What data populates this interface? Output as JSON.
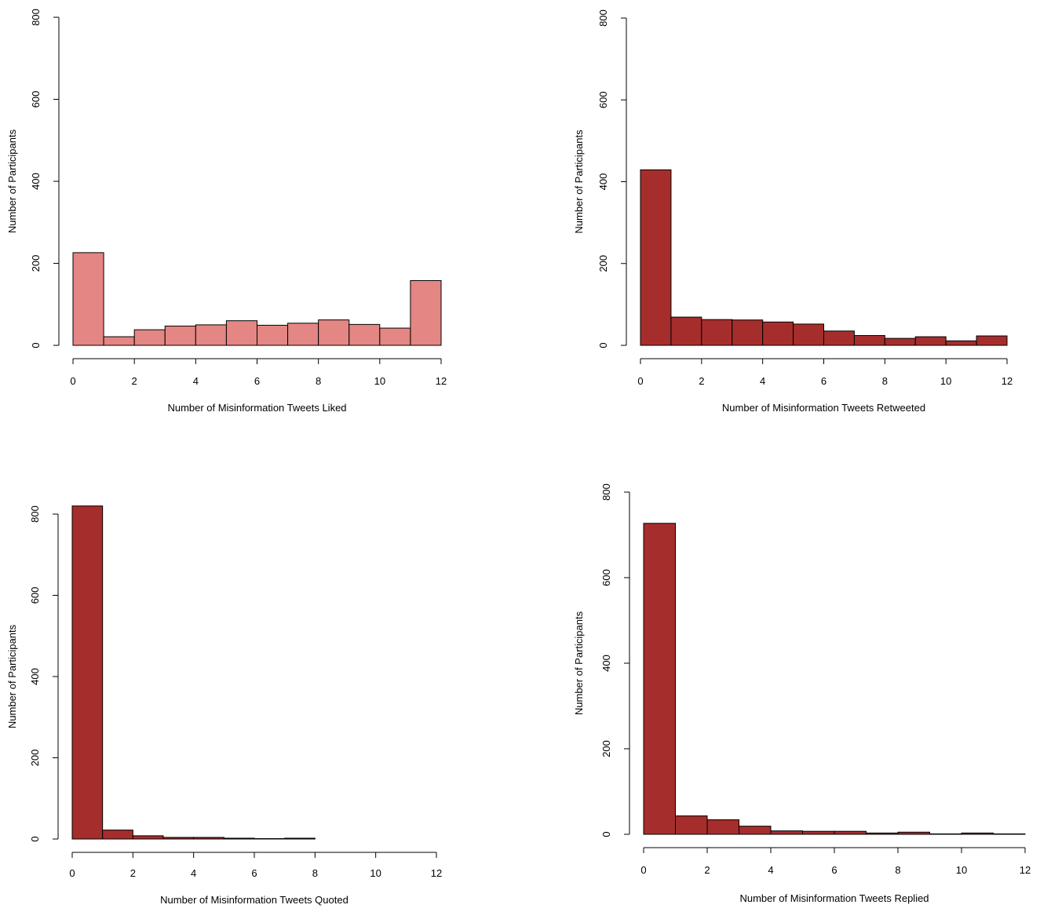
{
  "chart_data": [
    {
      "type": "bar",
      "subtype": "histogram",
      "xlabel": "Number of Misinformation Tweets Liked",
      "ylabel": "Number of Participants",
      "xlim": [
        0,
        12
      ],
      "ylim": [
        0,
        800
      ],
      "xticks": [
        "0",
        "2",
        "4",
        "6",
        "8",
        "10",
        "12"
      ],
      "yticks": [
        "0",
        "200",
        "400",
        "600",
        "800"
      ],
      "bin_edges": [
        0,
        1,
        2,
        3,
        4,
        5,
        6,
        7,
        8,
        9,
        10,
        11,
        12
      ],
      "values": [
        226,
        21,
        38,
        47,
        50,
        60,
        49,
        54,
        62,
        51,
        42,
        158
      ],
      "color": "#e48683"
    },
    {
      "type": "bar",
      "subtype": "histogram",
      "xlabel": "Number of Misinformation Tweets Retweeted",
      "ylabel": "Number of Participants",
      "xlim": [
        0,
        12
      ],
      "ylim": [
        0,
        800
      ],
      "xticks": [
        "0",
        "2",
        "4",
        "6",
        "8",
        "10",
        "12"
      ],
      "yticks": [
        "0",
        "200",
        "400",
        "600",
        "800"
      ],
      "bin_edges": [
        0,
        1,
        2,
        3,
        4,
        5,
        6,
        7,
        8,
        9,
        10,
        11,
        12
      ],
      "values": [
        429,
        69,
        63,
        62,
        57,
        52,
        35,
        24,
        17,
        21,
        11,
        23
      ],
      "color": "#a52e2d"
    },
    {
      "type": "bar",
      "subtype": "histogram",
      "xlabel": "Number of Misinformation Tweets Quoted",
      "ylabel": "Number of Participants",
      "xlim": [
        0,
        12
      ],
      "ylim": [
        0,
        800
      ],
      "xticks": [
        "0",
        "2",
        "4",
        "6",
        "8",
        "10",
        "12"
      ],
      "yticks": [
        "0",
        "200",
        "400",
        "600",
        "800"
      ],
      "bin_edges": [
        0,
        1,
        2,
        3,
        4,
        5,
        6,
        7,
        8
      ],
      "values": [
        820,
        22,
        8,
        4,
        4,
        2,
        1,
        2
      ],
      "color": "#a52e2d"
    },
    {
      "type": "bar",
      "subtype": "histogram",
      "xlabel": "Number of Misinformation Tweets Replied",
      "ylabel": "Number of Participants",
      "xlim": [
        0,
        12
      ],
      "ylim": [
        0,
        800
      ],
      "xticks": [
        "0",
        "2",
        "4",
        "6",
        "8",
        "10",
        "12"
      ],
      "yticks": [
        "0",
        "200",
        "400",
        "600",
        "800"
      ],
      "bin_edges": [
        0,
        1,
        2,
        3,
        4,
        5,
        6,
        7,
        8,
        9,
        10,
        11,
        12
      ],
      "values": [
        727,
        43,
        34,
        19,
        8,
        7,
        7,
        3,
        5,
        1,
        3,
        1
      ],
      "color": "#a52e2d"
    }
  ]
}
